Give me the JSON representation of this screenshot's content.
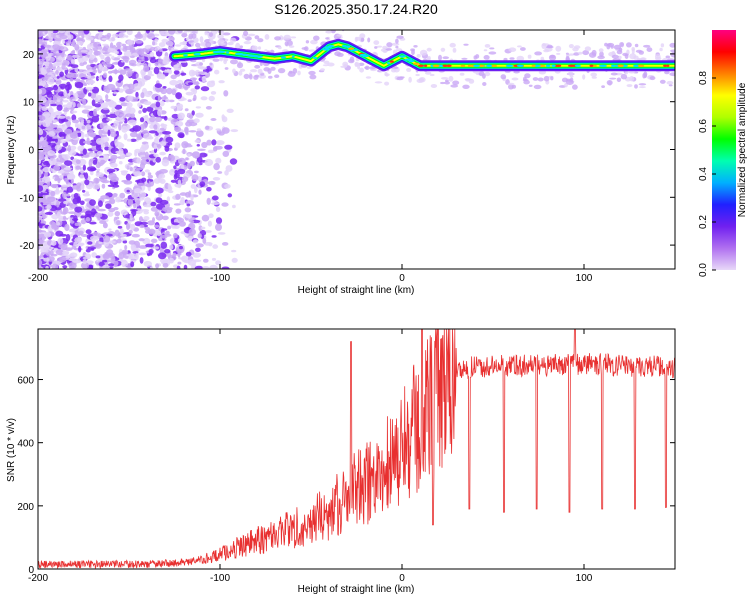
{
  "chart_data": [
    {
      "type": "heatmap",
      "title": "S126.2025.350.17.24.R20",
      "xlabel": "Height of straight line (km)",
      "ylabel": "Frequency (Hz)",
      "xlim": [
        -200,
        150
      ],
      "ylim": [
        -25,
        25
      ],
      "xticks": [
        "-200",
        "-100",
        "0",
        "100"
      ],
      "yticks": [
        "20",
        "10",
        "0",
        "-10",
        "-20"
      ],
      "colorbar": {
        "label": "Normalized spectral amplitude",
        "range": [
          0,
          1
        ],
        "ticks": [
          "0.0",
          "0.2",
          "0.4",
          "0.6",
          "0.8"
        ],
        "colors": [
          "#e8d8f8",
          "#b070f0",
          "#7020f0",
          "#2020ff",
          "#00b0ff",
          "#00ffb0",
          "#00ff00",
          "#b0ff00",
          "#ffff00",
          "#ff8000",
          "#ff0000",
          "#ff0080"
        ]
      },
      "ridge": {
        "x": [
          -125,
          -110,
          -100,
          -90,
          -80,
          -70,
          -60,
          -50,
          -45,
          -40,
          -35,
          -30,
          -25,
          -20,
          -15,
          -10,
          -5,
          0,
          5,
          10,
          20,
          40,
          60,
          80,
          100,
          120,
          150
        ],
        "y": [
          19.5,
          20,
          20.5,
          20,
          19.5,
          19,
          19.5,
          18.5,
          20,
          21.5,
          22,
          21.5,
          20.5,
          19.5,
          18.5,
          17.5,
          18.5,
          19.5,
          18.5,
          17.5,
          17.5,
          17.5,
          17.5,
          17.5,
          17.5,
          17.5,
          17.5
        ]
      }
    },
    {
      "type": "line",
      "xlabel": "Height of straight line (km)",
      "ylabel": "SNR (10 * v/v)",
      "xlim": [
        -200,
        150
      ],
      "ylim": [
        0,
        760
      ],
      "xticks": [
        "-200",
        "-100",
        "0",
        "100"
      ],
      "yticks": [
        "0",
        "200",
        "400",
        "600"
      ],
      "color": "#e83030",
      "envelope": {
        "x": [
          -200,
          -140,
          -120,
          -110,
          -100,
          -90,
          -80,
          -70,
          -60,
          -50,
          -40,
          -30,
          -20,
          -10,
          0,
          10,
          20,
          25,
          30,
          40,
          60,
          80,
          100,
          120,
          150
        ],
        "y": [
          15,
          15,
          20,
          30,
          45,
          70,
          90,
          110,
          130,
          150,
          180,
          230,
          270,
          320,
          380,
          460,
          560,
          610,
          630,
          640,
          645,
          645,
          650,
          645,
          640
        ]
      },
      "spikes": [
        {
          "x": -28,
          "y": 720
        },
        {
          "x": 11,
          "y": 760
        },
        {
          "x": 95,
          "y": 760
        }
      ],
      "dips": [
        {
          "x": 17,
          "y": 140
        },
        {
          "x": 37,
          "y": 190
        },
        {
          "x": 56,
          "y": 180
        },
        {
          "x": 74,
          "y": 190
        },
        {
          "x": 92,
          "y": 180
        },
        {
          "x": 110,
          "y": 190
        },
        {
          "x": 128,
          "y": 190
        },
        {
          "x": 145,
          "y": 195
        }
      ]
    }
  ]
}
